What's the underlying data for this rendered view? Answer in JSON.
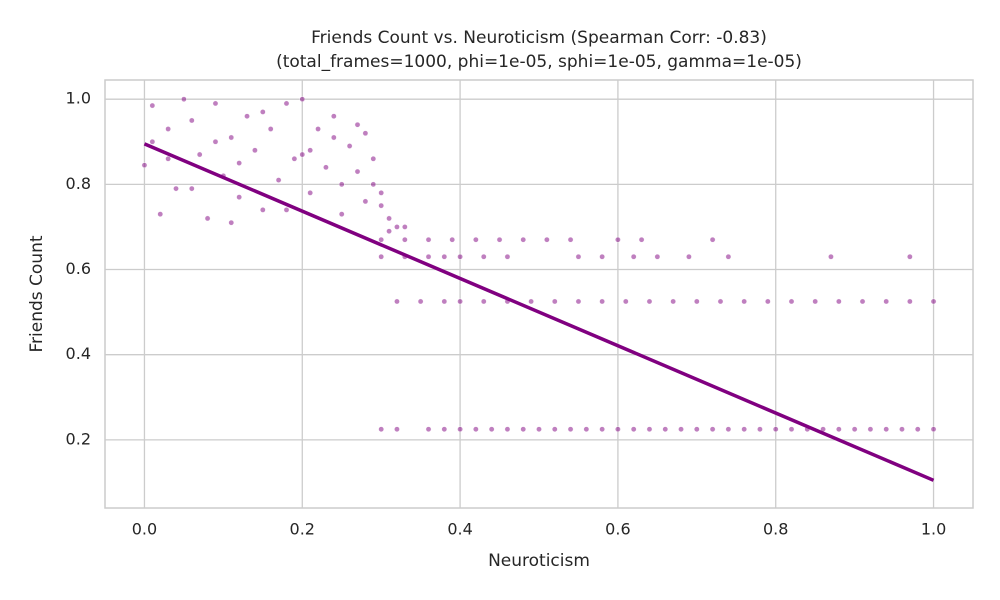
{
  "chart_data": {
    "type": "scatter",
    "title": "Friends Count vs. Neuroticism (Spearman Corr: -0.83)",
    "subtitle": "(total_frames=1000, phi=1e-05, sphi=1e-05, gamma=1e-05)",
    "x_label": "Neuroticism",
    "y_label": "Friends Count",
    "xlim": [
      -0.05,
      1.05
    ],
    "ylim": [
      0.04,
      1.045
    ],
    "xticks": [
      {
        "value": 0,
        "label": "0.0"
      },
      0.2,
      0.4,
      0.6,
      0.8,
      {
        "value": 1,
        "label": "1.0"
      }
    ],
    "yticks": [
      0.2,
      0.4,
      0.6,
      0.8,
      {
        "value": 1,
        "label": "1.0"
      }
    ],
    "grid": true,
    "color": "#800080",
    "x": [
      0.0,
      0.01,
      0.02,
      0.03,
      0.04,
      0.05,
      0.06,
      0.07,
      0.08,
      0.09,
      0.1,
      0.11,
      0.12,
      0.13,
      0.14,
      0.15,
      0.16,
      0.17,
      0.18,
      0.19,
      0.2,
      0.21,
      0.22,
      0.23,
      0.24,
      0.25,
      0.26,
      0.27,
      0.28,
      0.03,
      0.06,
      0.09,
      0.12,
      0.15,
      0.18,
      0.21,
      0.24,
      0.27,
      0.01,
      0.11,
      0.2,
      0.25,
      0.29,
      0.28,
      0.3,
      0.31,
      0.32,
      0.3,
      0.31,
      0.33,
      0.29,
      0.3,
      0.33,
      0.36,
      0.39,
      0.42,
      0.45,
      0.48,
      0.51,
      0.54,
      0.6,
      0.63,
      0.72,
      0.3,
      0.33,
      0.36,
      0.38,
      0.4,
      0.43,
      0.46,
      0.55,
      0.58,
      0.62,
      0.65,
      0.69,
      0.74,
      0.87,
      0.97,
      0.32,
      0.35,
      0.38,
      0.4,
      0.43,
      0.46,
      0.49,
      0.52,
      0.55,
      0.58,
      0.61,
      0.64,
      0.67,
      0.7,
      0.73,
      0.76,
      0.79,
      0.82,
      0.85,
      0.88,
      0.91,
      0.94,
      0.97,
      1.0,
      0.3,
      0.32,
      0.36,
      0.38,
      0.4,
      0.42,
      0.44,
      0.46,
      0.48,
      0.5,
      0.52,
      0.54,
      0.56,
      0.58,
      0.6,
      0.62,
      0.64,
      0.66,
      0.68,
      0.7,
      0.72,
      0.74,
      0.76,
      0.78,
      0.8,
      0.82,
      0.84,
      0.86,
      0.88,
      0.9,
      0.92,
      0.94,
      0.96,
      0.98,
      1.0
    ],
    "values": [
      0.845,
      0.985,
      0.73,
      0.93,
      0.79,
      1.0,
      0.95,
      0.87,
      0.72,
      0.99,
      0.82,
      0.91,
      0.77,
      0.96,
      0.88,
      0.74,
      0.93,
      0.81,
      0.99,
      0.86,
      1.0,
      0.78,
      0.93,
      0.84,
      0.96,
      0.8,
      0.89,
      0.83,
      0.76,
      0.86,
      0.79,
      0.9,
      0.85,
      0.97,
      0.74,
      0.88,
      0.91,
      0.94,
      0.9,
      0.71,
      0.87,
      0.73,
      0.86,
      0.92,
      0.75,
      0.72,
      0.7,
      0.78,
      0.69,
      0.7,
      0.8,
      0.67,
      0.67,
      0.67,
      0.67,
      0.67,
      0.67,
      0.67,
      0.67,
      0.67,
      0.67,
      0.67,
      0.67,
      0.63,
      0.63,
      0.63,
      0.63,
      0.63,
      0.63,
      0.63,
      0.63,
      0.63,
      0.63,
      0.63,
      0.63,
      0.63,
      0.63,
      0.63,
      0.525,
      0.525,
      0.525,
      0.525,
      0.525,
      0.525,
      0.525,
      0.525,
      0.525,
      0.525,
      0.525,
      0.525,
      0.525,
      0.525,
      0.525,
      0.525,
      0.525,
      0.525,
      0.525,
      0.525,
      0.525,
      0.525,
      0.525,
      0.525,
      0.225,
      0.225,
      0.225,
      0.225,
      0.225,
      0.225,
      0.225,
      0.225,
      0.225,
      0.225,
      0.225,
      0.225,
      0.225,
      0.225,
      0.225,
      0.225,
      0.225,
      0.225,
      0.225,
      0.225,
      0.225,
      0.225,
      0.225,
      0.225,
      0.225,
      0.225,
      0.225,
      0.225,
      0.225,
      0.225,
      0.225,
      0.225,
      0.225,
      0.225,
      0.225
    ],
    "fit_line": {
      "x": [
        0,
        1
      ],
      "values": [
        0.895,
        0.105
      ],
      "color": "#800080"
    }
  }
}
